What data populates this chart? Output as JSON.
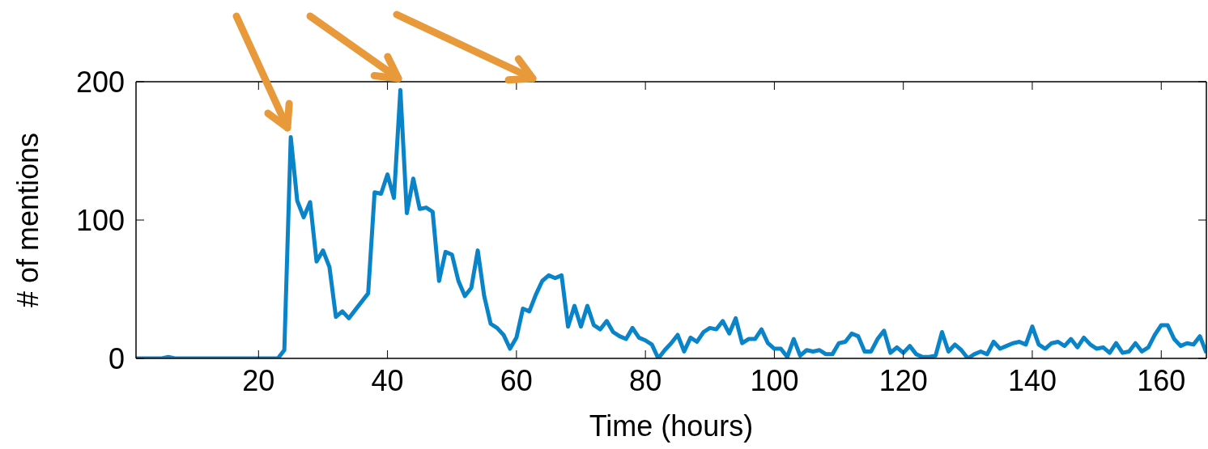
{
  "chart_data": {
    "type": "line",
    "xlabel": "Time (hours)",
    "ylabel": "# of mentions",
    "x": [
      1,
      5,
      6,
      7,
      23,
      24,
      25,
      26,
      27,
      28,
      29,
      30,
      31,
      32,
      33,
      34,
      35,
      36,
      37,
      38,
      39,
      40,
      41,
      42,
      43,
      44,
      45,
      46,
      47,
      48,
      49,
      50,
      51,
      52,
      53,
      54,
      55,
      56,
      57,
      58,
      59,
      60,
      61,
      62,
      63,
      64,
      65,
      66,
      67,
      68,
      69,
      70,
      71,
      72,
      73,
      74,
      75,
      76,
      77,
      78,
      79,
      80,
      81,
      82,
      83,
      84,
      85,
      86,
      87,
      88,
      89,
      90,
      91,
      92,
      93,
      94,
      95,
      96,
      97,
      98,
      99,
      100,
      101,
      102,
      103,
      104,
      105,
      106,
      107,
      108,
      109,
      110,
      111,
      112,
      113,
      114,
      115,
      116,
      117,
      118,
      119,
      120,
      121,
      122,
      123,
      124,
      125,
      126,
      127,
      128,
      129,
      130,
      131,
      132,
      133,
      134,
      135,
      136,
      137,
      138,
      139,
      140,
      141,
      142,
      143,
      144,
      145,
      146,
      147,
      148,
      149,
      150,
      151,
      152,
      153,
      154,
      155,
      156,
      157,
      158,
      159,
      160,
      161,
      162,
      163,
      164,
      165,
      166,
      167
    ],
    "series": [
      {
        "color": "#0a84c8",
        "values": [
          0,
          0,
          1,
          0,
          0,
          6,
          160,
          114,
          102,
          113,
          70,
          78,
          66,
          30,
          34,
          29,
          35,
          41,
          47,
          120,
          119,
          133,
          116,
          194,
          105,
          130,
          108,
          109,
          106,
          56,
          77,
          75,
          56,
          45,
          51,
          78,
          45,
          25,
          22,
          17,
          7,
          15,
          36,
          34,
          46,
          56,
          60,
          58,
          60,
          23,
          38,
          23,
          38,
          24,
          21,
          27,
          19,
          16,
          14,
          22,
          15,
          13,
          10,
          0,
          6,
          11,
          17,
          5,
          15,
          12,
          19,
          22,
          21,
          27,
          18,
          29,
          11,
          14,
          14,
          21,
          11,
          7,
          7,
          1,
          14,
          2,
          6,
          5,
          6,
          3,
          3,
          11,
          12,
          18,
          16,
          5,
          5,
          14,
          20,
          4,
          8,
          4,
          9,
          3,
          1,
          1,
          2,
          19,
          5,
          10,
          6,
          0,
          3,
          5,
          3,
          12,
          7,
          9,
          11,
          12,
          10,
          23,
          10,
          7,
          11,
          12,
          9,
          14,
          8,
          15,
          10,
          7,
          8,
          4,
          11,
          4,
          5,
          11,
          5,
          8,
          17,
          24,
          24,
          14,
          9,
          11,
          10,
          16,
          4
        ]
      }
    ],
    "xlim": [
      1,
      167
    ],
    "ylim": [
      0,
      200
    ],
    "xticks": [
      20,
      40,
      60,
      80,
      100,
      120,
      140,
      160
    ],
    "yticks": [
      0,
      100,
      200
    ],
    "grid": false,
    "legend": false,
    "marker": "none",
    "line_style": "solid"
  }
}
